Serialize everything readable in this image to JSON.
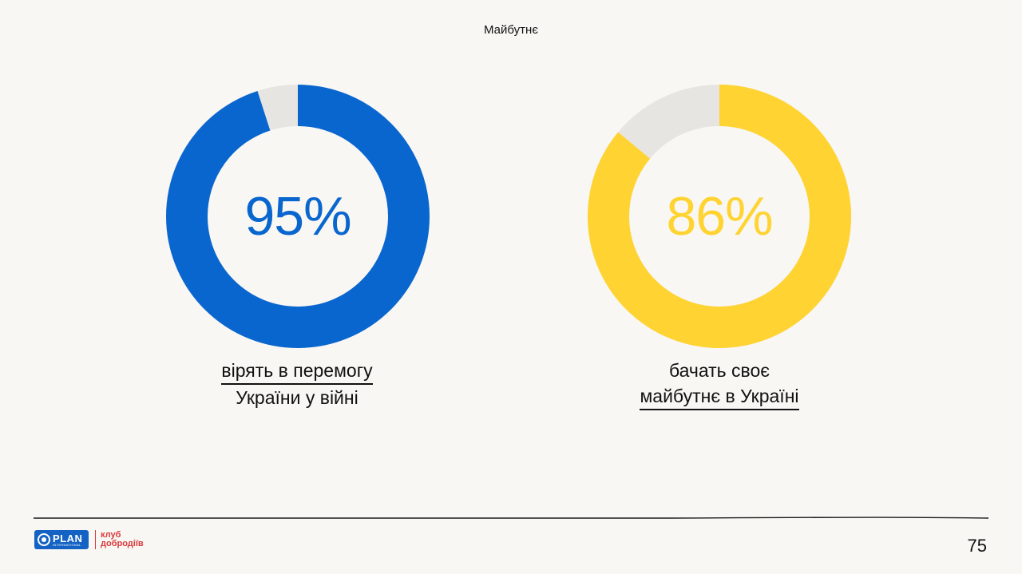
{
  "header": {
    "section_title": "Майбутнє"
  },
  "chart_data": [
    {
      "type": "pie",
      "style": "donut",
      "value": 95,
      "remainder": 5,
      "value_label": "95%",
      "colors": {
        "value": "#0a66cf",
        "remainder": "#e7e5e1"
      },
      "caption": {
        "line1": "вірять в перемогу",
        "line2": "України у війні",
        "underlined_line": 1
      }
    },
    {
      "type": "pie",
      "style": "donut",
      "value": 86,
      "remainder": 14,
      "value_label": "86%",
      "colors": {
        "value": "#ffd331",
        "remainder": "#e7e5e1"
      },
      "caption": {
        "line1": "бачать своє",
        "line2": "майбутнє в Україні",
        "underlined_line": 2
      }
    }
  ],
  "footer": {
    "logo_plan": "PLAN",
    "logo_plan_sub": "INTERNATIONAL",
    "logo_club_line1": "клуб",
    "logo_club_line2": "добродіїв",
    "page_number": "75"
  },
  "colors": {
    "background": "#f8f7f3",
    "brand_blue": "#1463c4",
    "brand_red": "#d8383b"
  }
}
